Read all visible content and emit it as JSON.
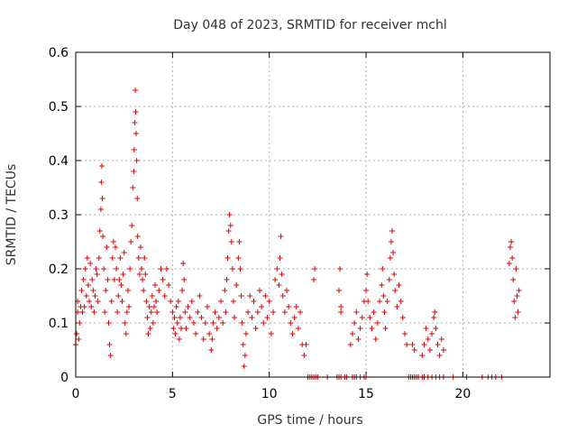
{
  "chart_data": {
    "type": "scatter",
    "title": "Day 048 of 2023, SRMTID for receiver mchl",
    "xlabel": "GPS time / hours",
    "ylabel": "SRMTID / TECUs",
    "xlim": [
      0,
      24.5
    ],
    "ylim": [
      0,
      0.6
    ],
    "xticks": [
      0,
      5,
      10,
      15,
      20
    ],
    "xtick_labels": [
      "0",
      "5",
      "10",
      "15",
      "20"
    ],
    "yticks": [
      0,
      0.1,
      0.2,
      0.3,
      0.4,
      0.5,
      0.6
    ],
    "ytick_labels": [
      "0",
      "0.1",
      "0.2",
      "0.3",
      "0.4",
      "0.5",
      "0.6"
    ],
    "grid": true,
    "marker": "+",
    "color": "#e00000",
    "series": [
      {
        "name": "SRMTID",
        "points": [
          [
            0.0,
            0.06
          ],
          [
            0.05,
            0.08
          ],
          [
            0.1,
            0.12
          ],
          [
            0.1,
            0.14
          ],
          [
            0.15,
            0.07
          ],
          [
            0.2,
            0.1
          ],
          [
            0.25,
            0.13
          ],
          [
            0.3,
            0.16
          ],
          [
            0.35,
            0.12
          ],
          [
            0.4,
            0.18
          ],
          [
            0.45,
            0.13
          ],
          [
            0.5,
            0.2
          ],
          [
            0.55,
            0.15
          ],
          [
            0.6,
            0.22
          ],
          [
            0.65,
            0.17
          ],
          [
            0.7,
            0.14
          ],
          [
            0.75,
            0.21
          ],
          [
            0.8,
            0.13
          ],
          [
            0.85,
            0.18
          ],
          [
            0.9,
            0.16
          ],
          [
            0.95,
            0.12
          ],
          [
            1.0,
            0.15
          ],
          [
            1.05,
            0.2
          ],
          [
            1.1,
            0.19
          ],
          [
            1.15,
            0.14
          ],
          [
            1.2,
            0.22
          ],
          [
            1.25,
            0.27
          ],
          [
            1.3,
            0.31
          ],
          [
            1.32,
            0.36
          ],
          [
            1.35,
            0.39
          ],
          [
            1.38,
            0.33
          ],
          [
            1.4,
            0.26
          ],
          [
            1.45,
            0.2
          ],
          [
            1.5,
            0.12
          ],
          [
            1.55,
            0.16
          ],
          [
            1.6,
            0.24
          ],
          [
            1.65,
            0.18
          ],
          [
            1.7,
            0.1
          ],
          [
            1.75,
            0.06
          ],
          [
            1.8,
            0.04
          ],
          [
            1.85,
            0.14
          ],
          [
            1.9,
            0.22
          ],
          [
            1.95,
            0.25
          ],
          [
            2.0,
            0.18
          ],
          [
            2.05,
            0.24
          ],
          [
            2.1,
            0.2
          ],
          [
            2.15,
            0.12
          ],
          [
            2.2,
            0.15
          ],
          [
            2.25,
            0.18
          ],
          [
            2.3,
            0.22
          ],
          [
            2.35,
            0.17
          ],
          [
            2.4,
            0.14
          ],
          [
            2.45,
            0.19
          ],
          [
            2.5,
            0.23
          ],
          [
            2.55,
            0.1
          ],
          [
            2.6,
            0.08
          ],
          [
            2.65,
            0.12
          ],
          [
            2.7,
            0.16
          ],
          [
            2.75,
            0.13
          ],
          [
            2.8,
            0.2
          ],
          [
            2.85,
            0.25
          ],
          [
            2.9,
            0.28
          ],
          [
            2.95,
            0.35
          ],
          [
            3.0,
            0.38
          ],
          [
            3.02,
            0.42
          ],
          [
            3.05,
            0.47
          ],
          [
            3.08,
            0.53
          ],
          [
            3.1,
            0.49
          ],
          [
            3.12,
            0.45
          ],
          [
            3.15,
            0.4
          ],
          [
            3.18,
            0.33
          ],
          [
            3.2,
            0.26
          ],
          [
            3.25,
            0.22
          ],
          [
            3.3,
            0.19
          ],
          [
            3.35,
            0.24
          ],
          [
            3.4,
            0.2
          ],
          [
            3.45,
            0.18
          ],
          [
            3.5,
            0.16
          ],
          [
            3.55,
            0.22
          ],
          [
            3.6,
            0.19
          ],
          [
            3.65,
            0.14
          ],
          [
            3.7,
            0.11
          ],
          [
            3.75,
            0.08
          ],
          [
            3.8,
            0.13
          ],
          [
            3.85,
            0.09
          ],
          [
            3.9,
            0.12
          ],
          [
            3.95,
            0.15
          ],
          [
            4.0,
            0.1
          ],
          [
            4.05,
            0.13
          ],
          [
            4.1,
            0.17
          ],
          [
            4.15,
            0.14
          ],
          [
            4.2,
            0.12
          ],
          [
            4.3,
            0.16
          ],
          [
            4.4,
            0.2
          ],
          [
            4.5,
            0.18
          ],
          [
            4.6,
            0.15
          ],
          [
            4.7,
            0.2
          ],
          [
            4.8,
            0.17
          ],
          [
            4.9,
            0.14
          ],
          [
            5.0,
            0.12
          ],
          [
            5.05,
            0.09
          ],
          [
            5.1,
            0.11
          ],
          [
            5.15,
            0.08
          ],
          [
            5.2,
            0.13
          ],
          [
            5.25,
            0.1
          ],
          [
            5.3,
            0.14
          ],
          [
            5.35,
            0.07
          ],
          [
            5.4,
            0.11
          ],
          [
            5.45,
            0.09
          ],
          [
            5.5,
            0.16
          ],
          [
            5.55,
            0.21
          ],
          [
            5.6,
            0.18
          ],
          [
            5.65,
            0.12
          ],
          [
            5.7,
            0.09
          ],
          [
            5.8,
            0.13
          ],
          [
            5.9,
            0.11
          ],
          [
            6.0,
            0.14
          ],
          [
            6.1,
            0.1
          ],
          [
            6.2,
            0.08
          ],
          [
            6.3,
            0.12
          ],
          [
            6.4,
            0.15
          ],
          [
            6.5,
            0.11
          ],
          [
            6.6,
            0.07
          ],
          [
            6.7,
            0.1
          ],
          [
            6.8,
            0.13
          ],
          [
            6.9,
            0.08
          ],
          [
            7.0,
            0.05
          ],
          [
            7.05,
            0.07
          ],
          [
            7.1,
            0.1
          ],
          [
            7.2,
            0.12
          ],
          [
            7.3,
            0.09
          ],
          [
            7.4,
            0.11
          ],
          [
            7.5,
            0.14
          ],
          [
            7.6,
            0.1
          ],
          [
            7.7,
            0.16
          ],
          [
            7.75,
            0.12
          ],
          [
            7.8,
            0.18
          ],
          [
            7.85,
            0.22
          ],
          [
            7.9,
            0.27
          ],
          [
            7.95,
            0.3
          ],
          [
            8.0,
            0.28
          ],
          [
            8.05,
            0.25
          ],
          [
            8.1,
            0.2
          ],
          [
            8.15,
            0.14
          ],
          [
            8.2,
            0.11
          ],
          [
            8.3,
            0.17
          ],
          [
            8.4,
            0.22
          ],
          [
            8.45,
            0.25
          ],
          [
            8.5,
            0.2
          ],
          [
            8.55,
            0.15
          ],
          [
            8.6,
            0.1
          ],
          [
            8.65,
            0.06
          ],
          [
            8.7,
            0.02
          ],
          [
            8.75,
            0.04
          ],
          [
            8.8,
            0.08
          ],
          [
            8.9,
            0.12
          ],
          [
            9.0,
            0.15
          ],
          [
            9.1,
            0.11
          ],
          [
            9.2,
            0.14
          ],
          [
            9.3,
            0.09
          ],
          [
            9.4,
            0.12
          ],
          [
            9.5,
            0.16
          ],
          [
            9.6,
            0.13
          ],
          [
            9.7,
            0.1
          ],
          [
            9.8,
            0.15
          ],
          [
            9.9,
            0.11
          ],
          [
            10.0,
            0.14
          ],
          [
            10.1,
            0.08
          ],
          [
            10.2,
            0.12
          ],
          [
            10.3,
            0.18
          ],
          [
            10.4,
            0.2
          ],
          [
            10.5,
            0.17
          ],
          [
            10.55,
            0.22
          ],
          [
            10.6,
            0.26
          ],
          [
            10.65,
            0.19
          ],
          [
            10.7,
            0.15
          ],
          [
            10.8,
            0.12
          ],
          [
            10.9,
            0.16
          ],
          [
            11.0,
            0.13
          ],
          [
            11.1,
            0.1
          ],
          [
            11.2,
            0.08
          ],
          [
            11.3,
            0.11
          ],
          [
            11.4,
            0.13
          ],
          [
            11.5,
            0.09
          ],
          [
            11.6,
            0.12
          ],
          [
            11.7,
            0.06
          ],
          [
            11.8,
            0.04
          ],
          [
            11.9,
            0.06
          ],
          [
            12.0,
            0.0
          ],
          [
            12.1,
            0.0
          ],
          [
            12.2,
            0.0
          ],
          [
            12.3,
            0.0
          ],
          [
            12.4,
            0.0
          ],
          [
            12.5,
            0.0
          ],
          [
            12.3,
            0.18
          ],
          [
            12.35,
            0.2
          ],
          [
            13.0,
            0.0
          ],
          [
            13.5,
            0.0
          ],
          [
            13.6,
            0.0
          ],
          [
            13.7,
            0.0
          ],
          [
            13.9,
            0.0
          ],
          [
            14.0,
            0.0
          ],
          [
            13.6,
            0.16
          ],
          [
            13.65,
            0.2
          ],
          [
            13.7,
            0.12
          ],
          [
            13.7,
            0.13
          ],
          [
            14.3,
            0.0
          ],
          [
            14.4,
            0.0
          ],
          [
            14.5,
            0.0
          ],
          [
            14.7,
            0.0
          ],
          [
            14.9,
            0.0
          ],
          [
            15.0,
            0.0
          ],
          [
            14.2,
            0.06
          ],
          [
            14.3,
            0.08
          ],
          [
            14.4,
            0.1
          ],
          [
            14.5,
            0.12
          ],
          [
            14.6,
            0.07
          ],
          [
            14.7,
            0.09
          ],
          [
            14.8,
            0.11
          ],
          [
            14.9,
            0.14
          ],
          [
            15.0,
            0.16
          ],
          [
            15.05,
            0.19
          ],
          [
            15.1,
            0.14
          ],
          [
            15.2,
            0.11
          ],
          [
            15.3,
            0.09
          ],
          [
            15.4,
            0.12
          ],
          [
            15.5,
            0.07
          ],
          [
            15.6,
            0.1
          ],
          [
            15.7,
            0.14
          ],
          [
            15.8,
            0.17
          ],
          [
            15.85,
            0.2
          ],
          [
            15.9,
            0.15
          ],
          [
            15.95,
            0.12
          ],
          [
            16.0,
            0.09
          ],
          [
            16.1,
            0.14
          ],
          [
            16.2,
            0.18
          ],
          [
            16.25,
            0.22
          ],
          [
            16.3,
            0.25
          ],
          [
            16.35,
            0.27
          ],
          [
            16.4,
            0.23
          ],
          [
            16.45,
            0.19
          ],
          [
            16.5,
            0.16
          ],
          [
            16.6,
            0.13
          ],
          [
            16.7,
            0.17
          ],
          [
            16.8,
            0.14
          ],
          [
            16.9,
            0.11
          ],
          [
            17.0,
            0.08
          ],
          [
            17.1,
            0.06
          ],
          [
            17.2,
            0.0
          ],
          [
            17.3,
            0.0
          ],
          [
            17.4,
            0.0
          ],
          [
            17.5,
            0.0
          ],
          [
            17.6,
            0.0
          ],
          [
            17.7,
            0.0
          ],
          [
            17.9,
            0.0
          ],
          [
            18.0,
            0.0
          ],
          [
            18.2,
            0.0
          ],
          [
            18.4,
            0.0
          ],
          [
            18.6,
            0.0
          ],
          [
            18.8,
            0.0
          ],
          [
            19.0,
            0.0
          ],
          [
            17.4,
            0.06
          ],
          [
            17.5,
            0.05
          ],
          [
            17.9,
            0.04
          ],
          [
            18.0,
            0.06
          ],
          [
            18.1,
            0.09
          ],
          [
            18.2,
            0.07
          ],
          [
            18.3,
            0.05
          ],
          [
            18.4,
            0.08
          ],
          [
            18.5,
            0.11
          ],
          [
            18.55,
            0.12
          ],
          [
            18.6,
            0.09
          ],
          [
            18.7,
            0.06
          ],
          [
            18.8,
            0.04
          ],
          [
            18.9,
            0.07
          ],
          [
            19.0,
            0.05
          ],
          [
            19.5,
            0.0
          ],
          [
            20.2,
            0.0
          ],
          [
            21.0,
            0.0
          ],
          [
            21.3,
            0.0
          ],
          [
            21.5,
            0.0
          ],
          [
            21.7,
            0.0
          ],
          [
            22.0,
            0.0
          ],
          [
            22.4,
            0.21
          ],
          [
            22.45,
            0.24
          ],
          [
            22.5,
            0.25
          ],
          [
            22.55,
            0.22
          ],
          [
            22.6,
            0.18
          ],
          [
            22.65,
            0.14
          ],
          [
            22.7,
            0.11
          ],
          [
            22.75,
            0.2
          ],
          [
            22.8,
            0.15
          ],
          [
            22.85,
            0.12
          ],
          [
            22.9,
            0.16
          ]
        ]
      }
    ]
  }
}
